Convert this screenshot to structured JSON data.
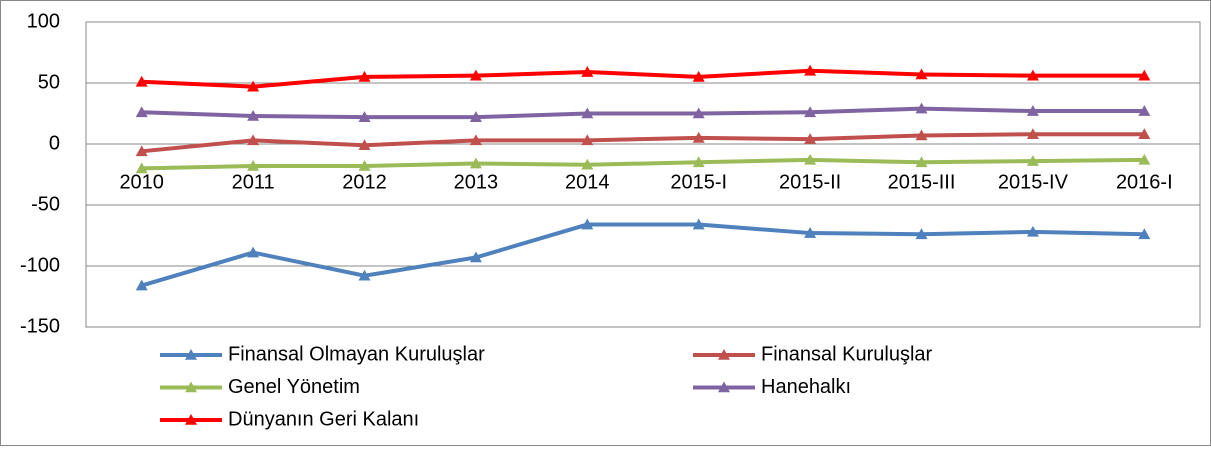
{
  "chart_data": {
    "type": "line",
    "categories": [
      "2010",
      "2011",
      "2012",
      "2013",
      "2014",
      "2015-I",
      "2015-II",
      "2015-III",
      "2015-IV",
      "2016-I"
    ],
    "series": [
      {
        "name": "Finansal Olmayan Kuruluşlar",
        "color": "#4f81bd",
        "values": [
          -116,
          -89,
          -108,
          -93,
          -66,
          -66,
          -73,
          -74,
          -72,
          -74
        ]
      },
      {
        "name": "Finansal Kuruluşlar",
        "color": "#c0504d",
        "values": [
          -6,
          3,
          -1,
          3,
          3,
          5,
          4,
          7,
          8,
          8
        ]
      },
      {
        "name": "Genel Yönetim",
        "color": "#9bbb59",
        "values": [
          -20,
          -18,
          -18,
          -16,
          -17,
          -15,
          -13,
          -15,
          -14,
          -13
        ]
      },
      {
        "name": "Hanehalkı",
        "color": "#8064a2",
        "values": [
          26,
          23,
          22,
          22,
          25,
          25,
          26,
          29,
          27,
          27
        ]
      },
      {
        "name": "Dünyanın Geri Kalanı",
        "color": "#ff0000",
        "values": [
          51,
          47,
          55,
          56,
          59,
          55,
          60,
          57,
          56,
          56
        ]
      }
    ],
    "ylim": [
      -150,
      100
    ],
    "yticks": [
      -150,
      -100,
      -50,
      0,
      50,
      100
    ],
    "grid": true,
    "marker": "triangle",
    "legend": "bottom"
  }
}
